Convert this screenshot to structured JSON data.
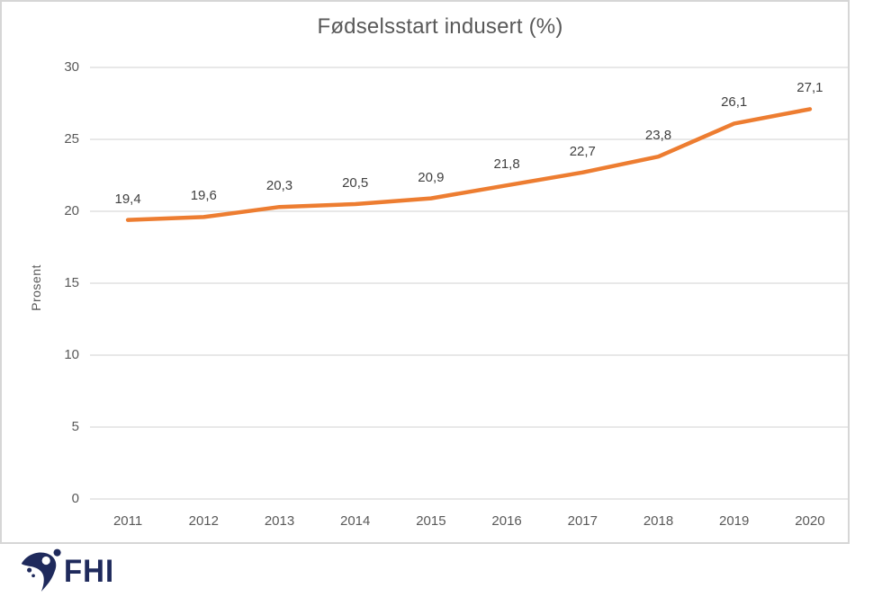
{
  "chart_data": {
    "type": "line",
    "title": "Fødselsstart indusert (%)",
    "xlabel": "",
    "ylabel": "Prosent",
    "categories": [
      "2011",
      "2012",
      "2013",
      "2014",
      "2015",
      "2016",
      "2017",
      "2018",
      "2019",
      "2020"
    ],
    "values": [
      19.4,
      19.6,
      20.3,
      20.5,
      20.9,
      21.8,
      22.7,
      23.8,
      26.1,
      27.1
    ],
    "data_labels": [
      "19,4",
      "19,6",
      "20,3",
      "20,5",
      "20,9",
      "21,8",
      "22,7",
      "23,8",
      "26,1",
      "27,1"
    ],
    "ylim": [
      0,
      30
    ],
    "y_ticks": [
      0,
      5,
      10,
      15,
      20,
      25,
      30
    ],
    "y_tick_labels": [
      "0",
      "5",
      "10",
      "15",
      "20",
      "25",
      "30"
    ],
    "grid": true,
    "legend_position": "none",
    "line_color": "#ED7D31"
  },
  "colors": {
    "line": "#ED7D31",
    "gridline": "#D9D9D9",
    "axis_line": "#D9D9D9",
    "tick_text": "#595959",
    "title_text": "#595959",
    "data_label_text": "#404040",
    "frame_border": "#D6D6D6",
    "logo_navy": "#1F2A5C"
  },
  "footer": {
    "logo_text": "FHI",
    "logo_icon": "fhi-swoosh-icon"
  }
}
